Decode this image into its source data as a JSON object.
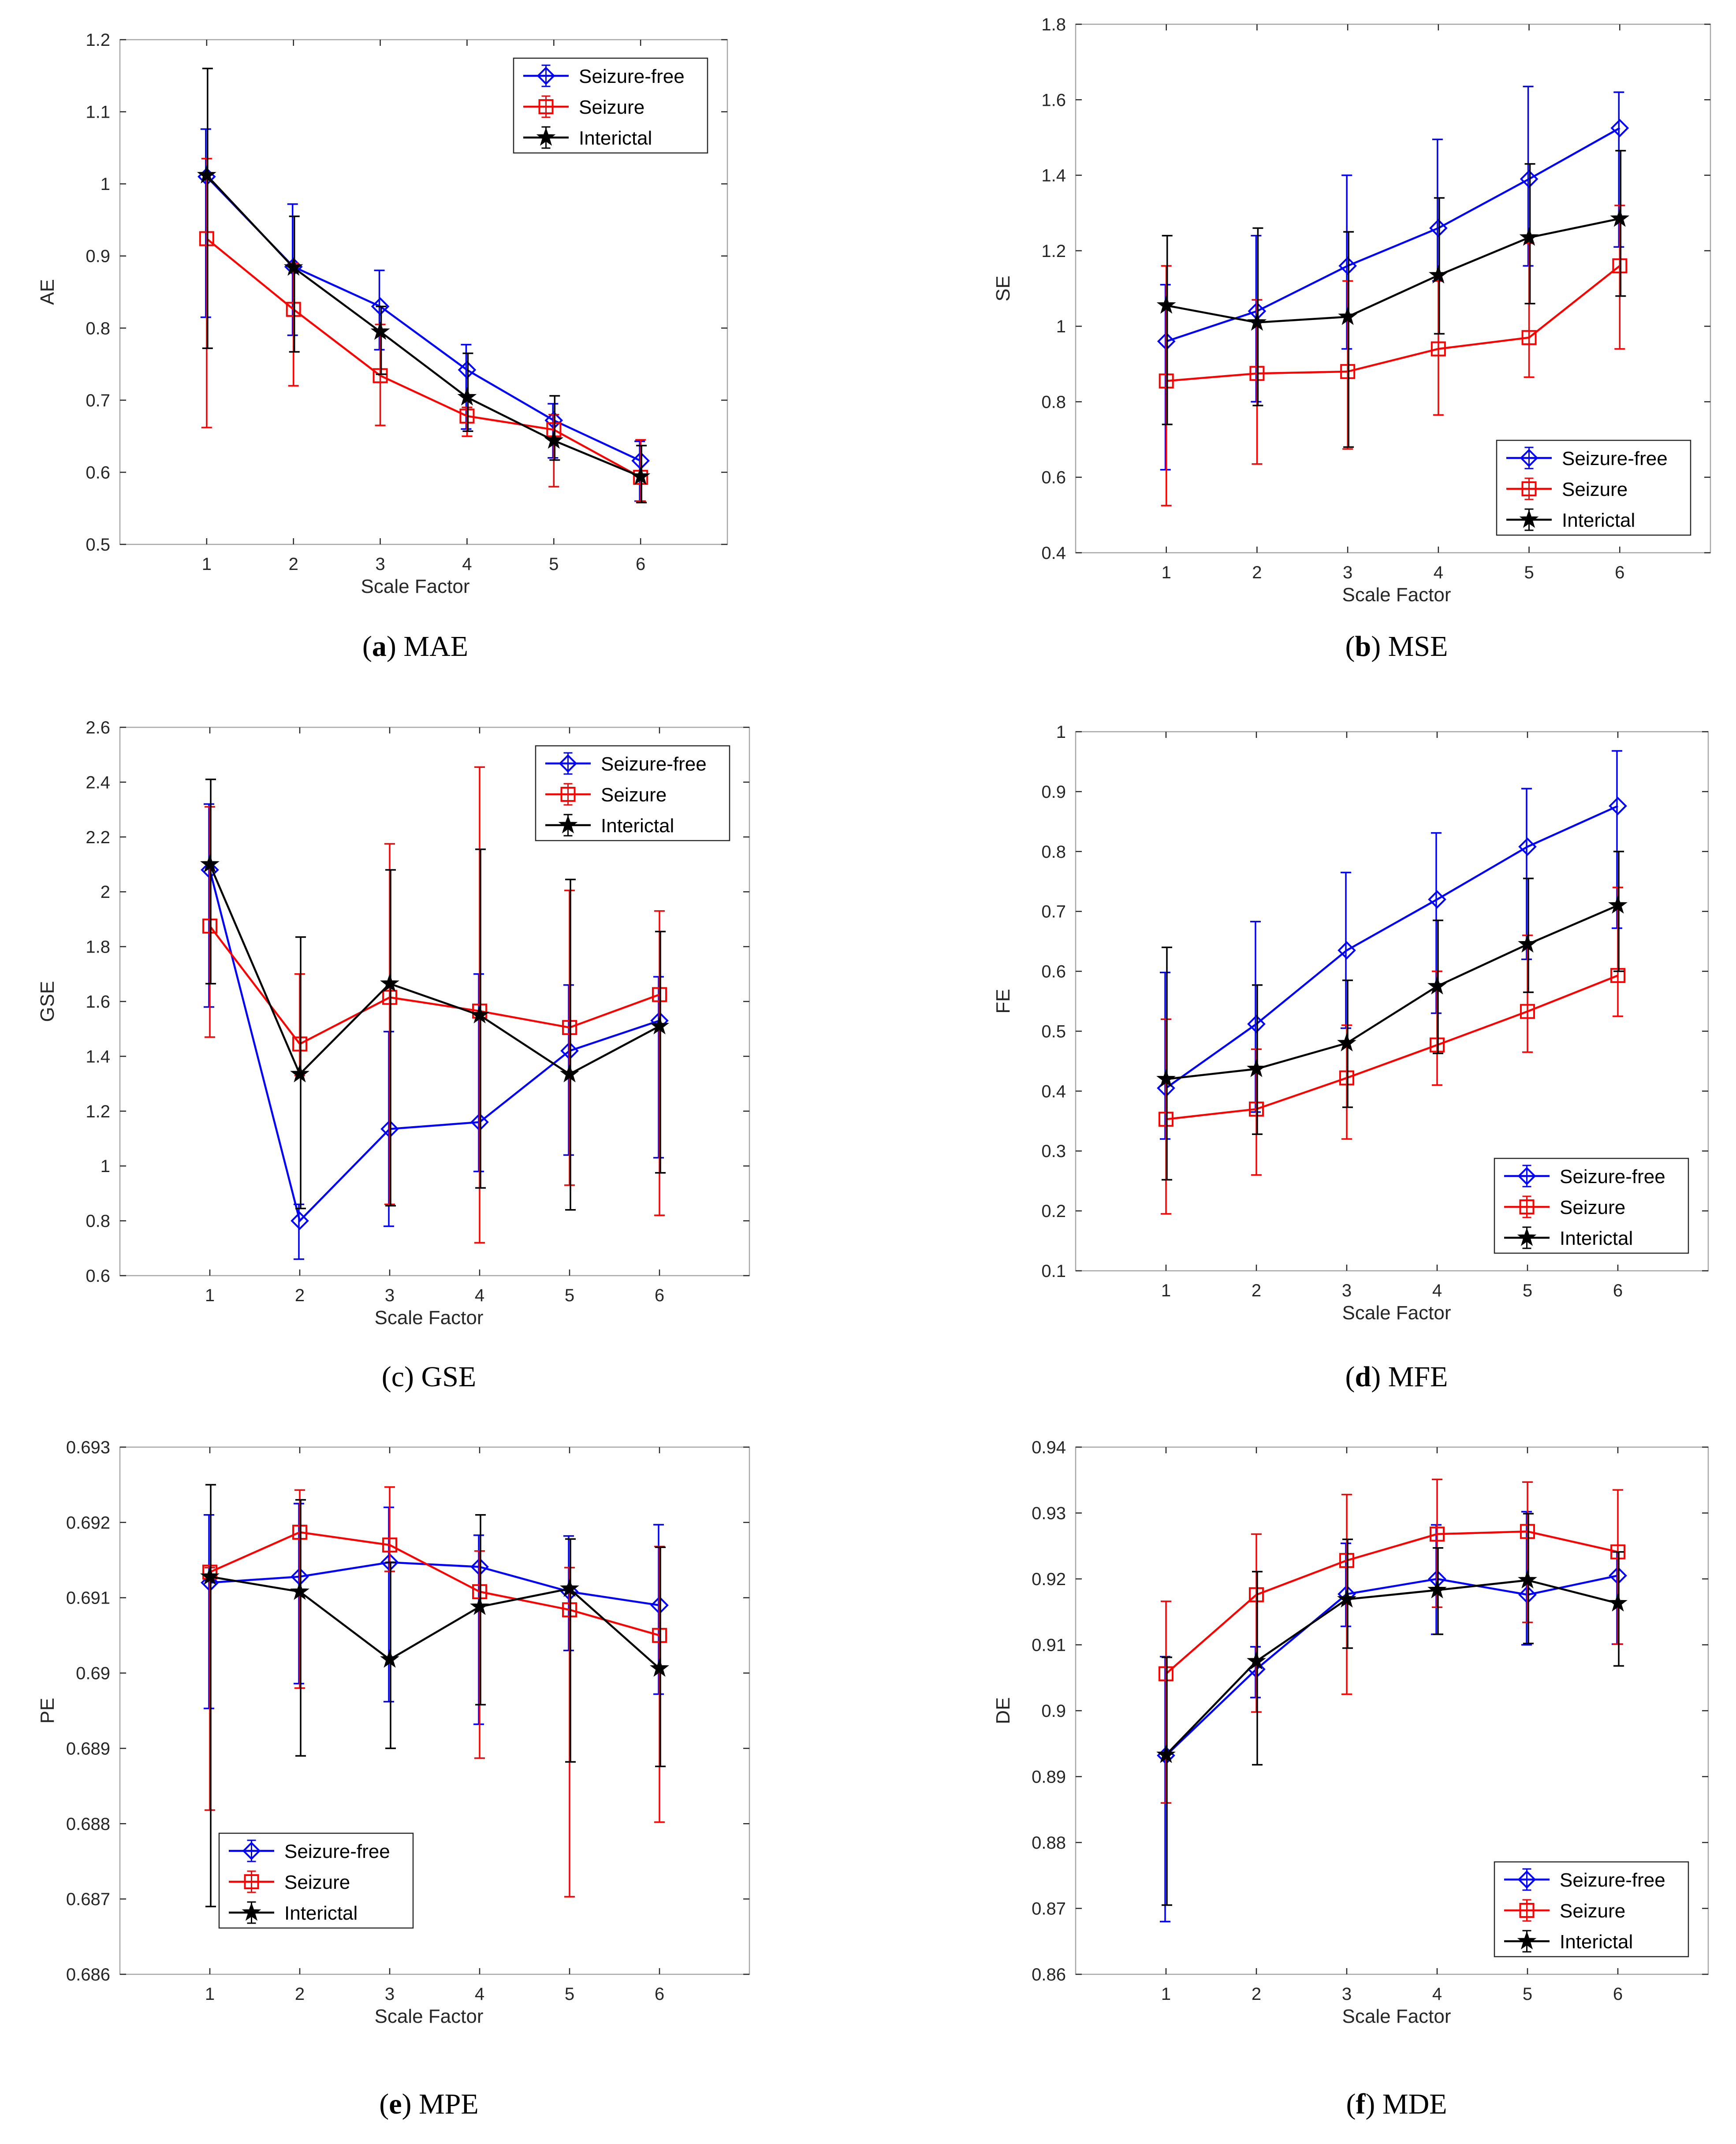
{
  "colors": {
    "seizure_free": "#0000ff",
    "seizure": "#ff0000",
    "interictal": "#000000",
    "axis": "#262626",
    "box": "#a6a6a6"
  },
  "chart_data": [
    {
      "id": "a",
      "type": "line",
      "caption_letter": "(a)",
      "caption_text": " MAE",
      "ylabel": "AE",
      "xlabel": "Scale Factor",
      "x": [
        1,
        2,
        3,
        4,
        5,
        6
      ],
      "xticklabels": [
        "1",
        "2",
        "3",
        "4",
        "5",
        "6"
      ],
      "ylim": [
        0.5,
        1.2
      ],
      "yticks": [
        0.5,
        0.6,
        0.7,
        0.8,
        0.9,
        1.0,
        1.1,
        1.2
      ],
      "yticklabels": [
        "0.5",
        "0.6",
        "0.7",
        "0.8",
        "0.9",
        "1",
        "1.1",
        "1.2"
      ],
      "legend": "top-right",
      "series": [
        {
          "name": "Seizure-free",
          "marker": "diamond",
          "values": [
            1.01,
            0.885,
            0.83,
            0.742,
            0.672,
            0.616
          ],
          "upper": [
            1.076,
            0.972,
            0.88,
            0.777,
            0.695,
            0.643
          ],
          "lower": [
            0.815,
            0.79,
            0.77,
            0.66,
            0.62,
            0.56
          ]
        },
        {
          "name": "Seizure",
          "marker": "square",
          "values": [
            0.924,
            0.826,
            0.734,
            0.678,
            0.659,
            0.593
          ],
          "upper": [
            1.035,
            0.89,
            0.805,
            0.69,
            0.68,
            0.645
          ],
          "lower": [
            0.662,
            0.72,
            0.665,
            0.65,
            0.58,
            0.56
          ]
        },
        {
          "name": "Interictal",
          "marker": "star",
          "values": [
            1.012,
            0.884,
            0.795,
            0.704,
            0.644,
            0.594
          ],
          "upper": [
            1.16,
            0.955,
            0.83,
            0.765,
            0.706,
            0.637
          ],
          "lower": [
            0.772,
            0.767,
            0.736,
            0.657,
            0.617,
            0.558
          ]
        }
      ]
    },
    {
      "id": "b",
      "type": "line",
      "caption_letter": "(b)",
      "caption_text": " MSE",
      "ylabel": "SE",
      "xlabel": "Scale Factor",
      "x": [
        1,
        2,
        3,
        4,
        5,
        6
      ],
      "xticklabels": [
        "1",
        "2",
        "3",
        "4",
        "5",
        "6"
      ],
      "ylim": [
        0.4,
        1.8
      ],
      "yticks": [
        0.4,
        0.6,
        0.8,
        1.0,
        1.2,
        1.4,
        1.6,
        1.8
      ],
      "yticklabels": [
        "0.4",
        "0.6",
        "0.8",
        "1",
        "1.2",
        "1.4",
        "1.6",
        "1.8"
      ],
      "legend": "bottom-right",
      "series": [
        {
          "name": "Seizure-free",
          "marker": "diamond",
          "values": [
            0.96,
            1.04,
            1.16,
            1.26,
            1.39,
            1.525
          ],
          "upper": [
            1.11,
            1.24,
            1.4,
            1.495,
            1.635,
            1.62
          ],
          "lower": [
            0.62,
            0.8,
            0.94,
            1.12,
            1.16,
            1.21
          ]
        },
        {
          "name": "Seizure",
          "marker": "square",
          "values": [
            0.855,
            0.875,
            0.88,
            0.94,
            0.97,
            1.16
          ],
          "upper": [
            1.16,
            1.07,
            1.12,
            1.12,
            1.22,
            1.32
          ],
          "lower": [
            0.525,
            0.635,
            0.675,
            0.765,
            0.865,
            0.94
          ]
        },
        {
          "name": "Interictal",
          "marker": "star",
          "values": [
            1.055,
            1.01,
            1.025,
            1.135,
            1.235,
            1.285
          ],
          "upper": [
            1.24,
            1.26,
            1.25,
            1.34,
            1.43,
            1.465
          ],
          "lower": [
            0.74,
            0.79,
            0.68,
            0.98,
            1.06,
            1.08
          ]
        }
      ]
    },
    {
      "id": "c",
      "type": "line",
      "caption_letter": "",
      "caption_text": "(c) GSE",
      "ylabel": "GSE",
      "xlabel": "Scale Factor",
      "x": [
        1,
        2,
        3,
        4,
        5,
        6
      ],
      "xticklabels": [
        "1",
        "2",
        "3",
        "4",
        "5",
        "6"
      ],
      "ylim": [
        0.6,
        2.6
      ],
      "yticks": [
        0.6,
        0.8,
        1.0,
        1.2,
        1.4,
        1.6,
        1.8,
        2.0,
        2.2,
        2.4,
        2.6
      ],
      "yticklabels": [
        "0.6",
        "0.8",
        "1",
        "1.2",
        "1.4",
        "1.6",
        "1.8",
        "2",
        "2.2",
        "2.4",
        "2.6"
      ],
      "legend": "top-right",
      "series": [
        {
          "name": "Seizure-free",
          "marker": "diamond",
          "values": [
            2.08,
            0.8,
            1.135,
            1.16,
            1.42,
            1.53
          ],
          "upper": [
            2.32,
            0.86,
            1.49,
            1.7,
            1.66,
            1.69
          ],
          "lower": [
            1.58,
            0.66,
            0.78,
            0.98,
            1.04,
            1.03
          ]
        },
        {
          "name": "Seizure",
          "marker": "square",
          "values": [
            1.875,
            1.445,
            1.615,
            1.565,
            1.505,
            1.625
          ],
          "upper": [
            2.31,
            1.7,
            2.175,
            2.455,
            2.005,
            1.93
          ],
          "lower": [
            1.47,
            1.33,
            0.86,
            0.72,
            0.93,
            0.82
          ]
        },
        {
          "name": "Interictal",
          "marker": "star",
          "values": [
            2.1,
            1.335,
            1.665,
            1.55,
            1.335,
            1.51
          ],
          "upper": [
            2.41,
            1.835,
            2.08,
            2.155,
            2.045,
            1.855
          ],
          "lower": [
            1.665,
            0.845,
            0.855,
            0.92,
            0.84,
            0.975
          ]
        }
      ]
    },
    {
      "id": "d",
      "type": "line",
      "caption_letter": "(d)",
      "caption_text": " MFE",
      "ylabel": "FE",
      "xlabel": "Scale Factor",
      "x": [
        1,
        2,
        3,
        4,
        5,
        6
      ],
      "xticklabels": [
        "1",
        "2",
        "3",
        "4",
        "5",
        "6"
      ],
      "ylim": [
        0.1,
        1.0
      ],
      "yticks": [
        0.1,
        0.2,
        0.3,
        0.4,
        0.5,
        0.6,
        0.7,
        0.8,
        0.9,
        1.0
      ],
      "yticklabels": [
        "0.1",
        "0.2",
        "0.3",
        "0.4",
        "0.5",
        "0.6",
        "0.7",
        "0.8",
        "0.9",
        "1"
      ],
      "legend": "bottom-right",
      "series": [
        {
          "name": "Seizure-free",
          "marker": "diamond",
          "values": [
            0.405,
            0.512,
            0.635,
            0.72,
            0.808,
            0.876
          ],
          "upper": [
            0.598,
            0.683,
            0.765,
            0.831,
            0.905,
            0.968
          ],
          "lower": [
            0.32,
            0.365,
            0.505,
            0.53,
            0.62,
            0.672
          ]
        },
        {
          "name": "Seizure",
          "marker": "square",
          "values": [
            0.353,
            0.37,
            0.422,
            0.477,
            0.533,
            0.593
          ],
          "upper": [
            0.52,
            0.47,
            0.51,
            0.6,
            0.66,
            0.74
          ],
          "lower": [
            0.195,
            0.26,
            0.32,
            0.41,
            0.465,
            0.525
          ]
        },
        {
          "name": "Interictal",
          "marker": "star",
          "values": [
            0.42,
            0.437,
            0.48,
            0.575,
            0.645,
            0.71
          ],
          "upper": [
            0.64,
            0.577,
            0.585,
            0.685,
            0.755,
            0.8
          ],
          "lower": [
            0.252,
            0.328,
            0.373,
            0.463,
            0.565,
            0.6
          ]
        }
      ]
    },
    {
      "id": "e",
      "type": "line",
      "caption_letter": "(e)",
      "caption_text": " MPE",
      "ylabel": "PE",
      "xlabel": "Scale Factor",
      "x": [
        1,
        2,
        3,
        4,
        5,
        6
      ],
      "xticklabels": [
        "1",
        "2",
        "3",
        "4",
        "5",
        "6"
      ],
      "ylim": [
        0.686,
        0.693
      ],
      "yticks": [
        0.686,
        0.687,
        0.688,
        0.689,
        0.69,
        0.691,
        0.692,
        0.693
      ],
      "yticklabels": [
        "0.686",
        "0.687",
        "0.688",
        "0.689",
        "0.69",
        "0.691",
        "0.692",
        "0.693"
      ],
      "legend": "bottom-left",
      "series": [
        {
          "name": "Seizure-free",
          "marker": "diamond",
          "values": [
            0.6912,
            0.69128,
            0.69147,
            0.69141,
            0.69108,
            0.6909
          ],
          "upper": [
            0.6921,
            0.69225,
            0.6922,
            0.69183,
            0.69182,
            0.69197
          ],
          "lower": [
            0.68953,
            0.68986,
            0.68962,
            0.68932,
            0.6903,
            0.68972
          ]
        },
        {
          "name": "Seizure",
          "marker": "square",
          "values": [
            0.69134,
            0.69187,
            0.6917,
            0.69108,
            0.69084,
            0.6905
          ],
          "upper": [
            0.6914,
            0.69243,
            0.69247,
            0.69162,
            0.6914,
            0.69168
          ],
          "lower": [
            0.68818,
            0.6898,
            0.69135,
            0.68887,
            0.68703,
            0.68802
          ]
        },
        {
          "name": "Interictal",
          "marker": "star",
          "values": [
            0.69128,
            0.69108,
            0.69018,
            0.69088,
            0.69112,
            0.69006
          ],
          "upper": [
            0.6925,
            0.6923,
            0.69147,
            0.6921,
            0.69178,
            0.69167
          ],
          "lower": [
            0.6869,
            0.6889,
            0.689,
            0.68958,
            0.68882,
            0.68876
          ]
        }
      ]
    },
    {
      "id": "f",
      "type": "line",
      "caption_letter": "(f)",
      "caption_text": " MDE",
      "ylabel": "DE",
      "xlabel": "Scale Factor",
      "x": [
        1,
        2,
        3,
        4,
        5,
        6
      ],
      "xticklabels": [
        "1",
        "2",
        "3",
        "4",
        "5",
        "6"
      ],
      "ylim": [
        0.86,
        0.94
      ],
      "yticks": [
        0.86,
        0.87,
        0.88,
        0.89,
        0.9,
        0.91,
        0.92,
        0.93,
        0.94
      ],
      "yticklabels": [
        "0.86",
        "0.87",
        "0.88",
        "0.89",
        "0.9",
        "0.91",
        "0.92",
        "0.93",
        "0.94"
      ],
      "legend": "bottom-right",
      "series": [
        {
          "name": "Seizure-free",
          "marker": "diamond",
          "values": [
            0.8932,
            0.9063,
            0.9177,
            0.92,
            0.9176,
            0.9205
          ],
          "upper": [
            0.9082,
            0.9097,
            0.9254,
            0.9282,
            0.9302,
            0.9241
          ],
          "lower": [
            0.868,
            0.902,
            0.9128,
            0.9116,
            0.91,
            0.9101
          ]
        },
        {
          "name": "Seizure",
          "marker": "square",
          "values": [
            0.9056,
            0.9176,
            0.9228,
            0.9268,
            0.9272,
            0.9241
          ],
          "upper": [
            0.9166,
            0.9268,
            0.9328,
            0.9351,
            0.9347,
            0.9335
          ],
          "lower": [
            0.886,
            0.8998,
            0.9025,
            0.9157,
            0.9134,
            0.9101
          ]
        },
        {
          "name": "Interictal",
          "marker": "star",
          "values": [
            0.8933,
            0.9075,
            0.9169,
            0.9183,
            0.9198,
            0.9163
          ],
          "upper": [
            0.9081,
            0.9211,
            0.926,
            0.9247,
            0.9299,
            0.9241
          ],
          "lower": [
            0.8705,
            0.8918,
            0.9095,
            0.9116,
            0.9102,
            0.9068
          ]
        }
      ]
    }
  ]
}
